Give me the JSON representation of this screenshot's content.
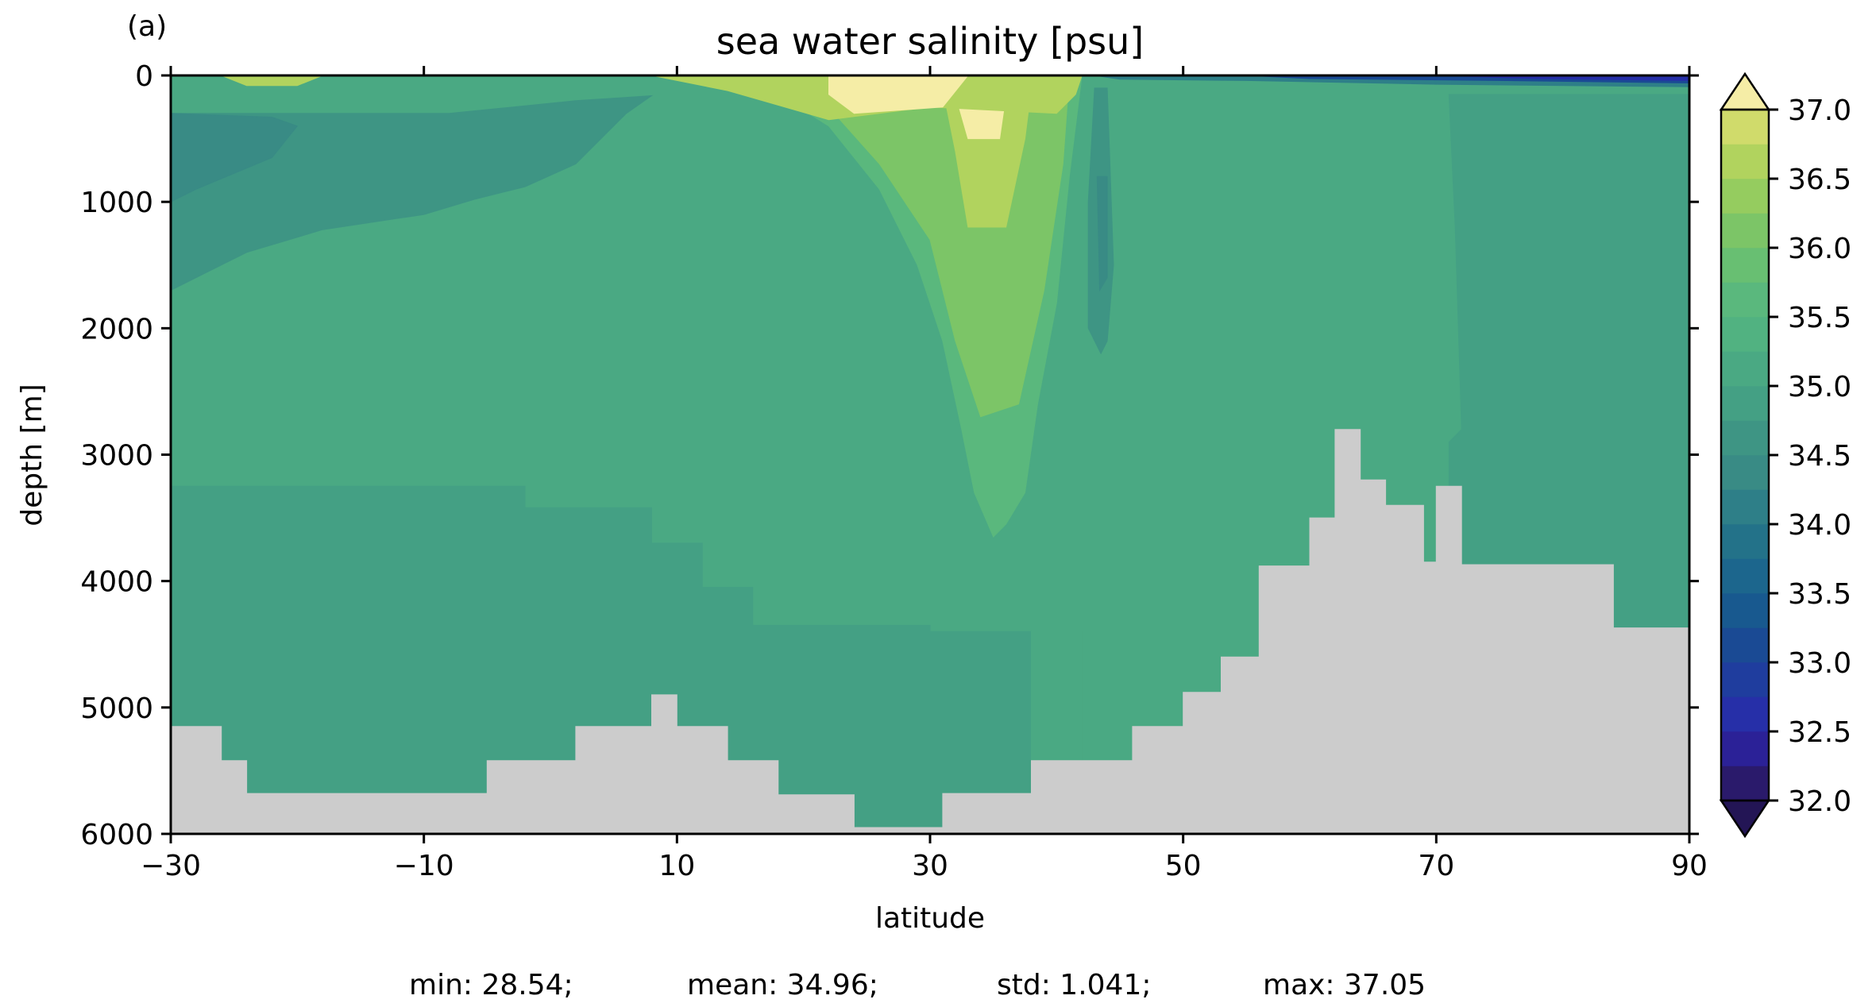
{
  "chart_data": {
    "type": "heatmap",
    "panel_label": "(a)",
    "title": "sea water salinity [psu]",
    "xlabel": "latitude",
    "ylabel": "depth [m]",
    "xlim": [
      -30,
      90
    ],
    "ylim": [
      6000,
      0
    ],
    "x_ticks": [
      -30,
      -10,
      10,
      30,
      50,
      70,
      90
    ],
    "y_ticks": [
      0,
      1000,
      2000,
      3000,
      4000,
      5000,
      6000
    ],
    "x_tick_labels": [
      "−30",
      "−10",
      "10",
      "30",
      "50",
      "70",
      "90"
    ],
    "y_tick_labels": [
      "0",
      "1000",
      "2000",
      "3000",
      "4000",
      "5000",
      "6000"
    ],
    "colorbar": {
      "min": 32.0,
      "max": 37.0,
      "step": 0.25,
      "extend": "both",
      "ticks": [
        "32.0",
        "32.5",
        "33.0",
        "33.5",
        "34.0",
        "34.5",
        "35.0",
        "35.5",
        "36.0",
        "36.5",
        "37.0"
      ],
      "colors": [
        "#2a1a6b",
        "#2b2197",
        "#262fa8",
        "#1f3d9e",
        "#1a4a94",
        "#18598f",
        "#1c668d",
        "#237289",
        "#2e7f88",
        "#398b85",
        "#3e9584",
        "#44a084",
        "#4aa983",
        "#51b281",
        "#5ab87d",
        "#68bf72",
        "#7cc567",
        "#95cc5f",
        "#b1d35e",
        "#d0db6b",
        "#ecea93"
      ],
      "under_color": "#231555",
      "over_color": "#f5eda6"
    },
    "land_color": "#cccccc",
    "salinity_fields": [
      {
        "region": "upper water -30 to 8 lat, 100-1200 m",
        "value": 34.6
      },
      {
        "region": "deep water -30 to 90 lat, 1200-3200 m",
        "value": 35.1
      },
      {
        "region": "bottom water -30 to 30 lat, 3300-5900 m",
        "value": 34.8
      },
      {
        "region": "Mediterranean outflow tongue 28-38 lat",
        "value": 36.0
      },
      {
        "region": "subtropical surface maximum 22-38 lat",
        "value": 37.0
      },
      {
        "region": "Arctic surface water 55-90 lat",
        "value": 32.5
      },
      {
        "region": "Arctic deep water 72-90 lat",
        "value": 34.8
      }
    ],
    "bathymetry": {
      "latitude": [
        -30,
        -26,
        -24,
        -20,
        -5,
        2,
        8,
        10,
        14,
        18,
        24,
        31,
        38,
        46,
        50,
        53,
        56,
        60,
        62,
        64,
        66,
        69,
        70,
        72,
        80,
        84,
        90
      ],
      "depth": [
        5150,
        5420,
        5680,
        5680,
        5420,
        5150,
        4900,
        5150,
        5420,
        5690,
        5950,
        5680,
        5420,
        5150,
        4880,
        4600,
        3880,
        3500,
        2800,
        3200,
        3400,
        3850,
        3250,
        3870,
        3870,
        4370,
        4370
      ]
    },
    "stats": {
      "min": "min: 28.54;",
      "mean": "mean: 34.96;",
      "std": "std: 1.041;",
      "max": "max: 37.05"
    }
  }
}
